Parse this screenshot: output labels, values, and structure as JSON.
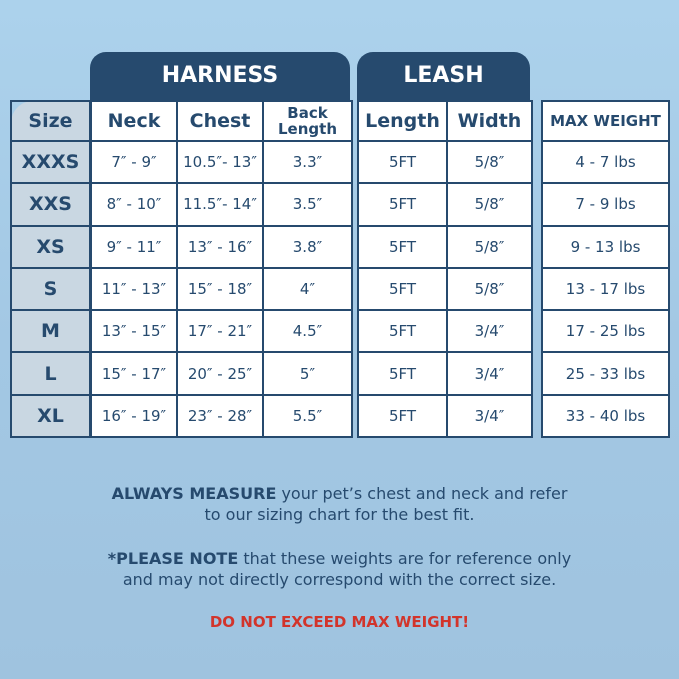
{
  "harness_title": "HARNESS",
  "leash_title": "LEASH",
  "headers": {
    "size": "Size",
    "neck": "Neck",
    "chest": "Chest",
    "back_length": "Back Length",
    "length": "Length",
    "width": "Width",
    "max_weight": "MAX WEIGHT"
  },
  "rows": [
    {
      "size": "XXXS",
      "neck": "7″ - 9″",
      "chest": "10.5″- 13″",
      "back": "3.3″",
      "length": "5FT",
      "width": "5/8″",
      "weight": "4 - 7 lbs"
    },
    {
      "size": "XXS",
      "neck": "8″ - 10″",
      "chest": "11.5″- 14″",
      "back": "3.5″",
      "length": "5FT",
      "width": "5/8″",
      "weight": "7 - 9 lbs"
    },
    {
      "size": "XS",
      "neck": "9″ - 11″",
      "chest": "13″ - 16″",
      "back": "3.8″",
      "length": "5FT",
      "width": "5/8″",
      "weight": "9 - 13 lbs"
    },
    {
      "size": "S",
      "neck": "11″ - 13″",
      "chest": "15″ - 18″",
      "back": "4″",
      "length": "5FT",
      "width": "5/8″",
      "weight": "13 - 17 lbs"
    },
    {
      "size": "M",
      "neck": "13″ - 15″",
      "chest": "17″ - 21″",
      "back": "4.5″",
      "length": "5FT",
      "width": "3/4″",
      "weight": "17 - 25 lbs"
    },
    {
      "size": "L",
      "neck": "15″ - 17″",
      "chest": "20″ - 25″",
      "back": "5″",
      "length": "5FT",
      "width": "3/4″",
      "weight": "25 - 33 lbs"
    },
    {
      "size": "XL",
      "neck": "16″ - 19″",
      "chest": "23″ - 28″",
      "back": "5.5″",
      "length": "5FT",
      "width": "3/4″",
      "weight": "33 - 40 lbs"
    }
  ],
  "note1": {
    "bold": "ALWAYS MEASURE",
    "line1": " your pet’s chest and neck and refer",
    "line2": "to our sizing chart for the best fit."
  },
  "note2": {
    "bold": "*PLEASE NOTE",
    "line1": " that these weights are for reference only",
    "line2": "and may not directly correspond with the correct size."
  },
  "warning": "DO NOT EXCEED MAX WEIGHT!",
  "colors": {
    "navy": "#264a6e",
    "size_column": "#c9d7e2",
    "warning": "#d2342b"
  }
}
